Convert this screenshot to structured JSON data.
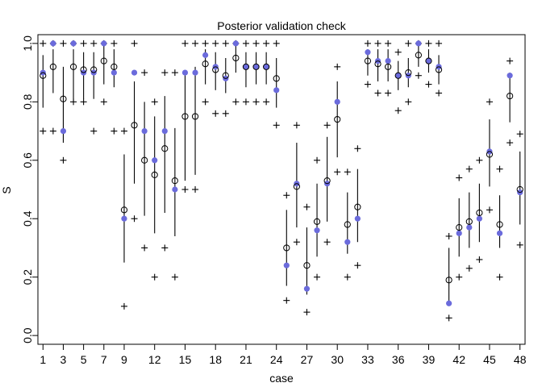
{
  "chart_data": {
    "type": "scatter",
    "title": "Posterior validation check",
    "xlabel": "case",
    "ylabel": "S",
    "xlim": [
      0.5,
      48.5
    ],
    "ylim": [
      -0.03,
      1.03
    ],
    "xticks": [
      1,
      3,
      5,
      7,
      9,
      12,
      15,
      18,
      21,
      24,
      27,
      30,
      33,
      36,
      39,
      42,
      45,
      48
    ],
    "xtick_labels": [
      "1",
      "3",
      "5",
      "7",
      "9",
      "12",
      "15",
      "18",
      "21",
      "24",
      "27",
      "30",
      "33",
      "36",
      "39",
      "42",
      "45",
      "48"
    ],
    "yticks": [
      0.0,
      0.2,
      0.4,
      0.6,
      0.8,
      1.0
    ],
    "ytick_labels": [
      "0.0",
      "0.2",
      "0.4",
      "0.6",
      "0.8",
      "1.0"
    ],
    "colors": {
      "observed": "#6b6bdc",
      "predicted": "#000000",
      "interval": "#000000"
    },
    "grid": false,
    "legend": "none",
    "x": [
      1,
      2,
      3,
      4,
      5,
      6,
      7,
      8,
      9,
      10,
      11,
      12,
      13,
      14,
      15,
      16,
      17,
      18,
      19,
      20,
      21,
      22,
      23,
      24,
      25,
      26,
      27,
      28,
      29,
      30,
      31,
      32,
      33,
      34,
      35,
      36,
      37,
      38,
      39,
      40,
      41,
      42,
      43,
      44,
      45,
      46,
      47,
      48
    ],
    "series": [
      {
        "values": [
          0.9,
          1.0,
          0.7,
          1.0,
          0.9,
          0.9,
          1.0,
          0.9,
          0.4,
          0.9,
          0.7,
          0.6,
          0.7,
          0.5,
          0.9,
          0.9,
          0.96,
          0.92,
          0.88,
          1.0,
          0.92,
          0.92,
          0.92,
          0.84,
          0.24,
          0.52,
          0.16,
          0.36,
          0.52,
          0.8,
          0.32,
          0.4,
          0.97,
          0.94,
          0.94,
          0.89,
          0.89,
          1.0,
          0.94,
          0.92,
          0.11,
          0.35,
          0.37,
          0.4,
          0.63,
          0.35,
          0.89,
          0.49
        ]
      },
      {
        "values": [
          0.89,
          0.92,
          0.81,
          0.92,
          0.91,
          0.91,
          0.94,
          0.92,
          0.43,
          0.72,
          0.6,
          0.55,
          0.64,
          0.53,
          0.75,
          0.75,
          0.93,
          0.91,
          0.89,
          0.95,
          0.92,
          0.92,
          0.92,
          0.88,
          0.3,
          0.51,
          0.24,
          0.39,
          0.53,
          0.74,
          0.38,
          0.44,
          0.94,
          0.93,
          0.92,
          0.89,
          0.9,
          0.96,
          0.94,
          0.91,
          0.19,
          0.37,
          0.39,
          0.42,
          0.62,
          0.38,
          0.82,
          0.5
        ]
      }
    ],
    "interval_low": [
      0.78,
      0.83,
      0.66,
      0.8,
      0.81,
      0.81,
      0.86,
      0.85,
      0.25,
      0.52,
      0.41,
      0.35,
      0.42,
      0.34,
      0.53,
      0.55,
      0.86,
      0.84,
      0.83,
      0.9,
      0.85,
      0.86,
      0.86,
      0.78,
      0.17,
      0.37,
      0.14,
      0.27,
      0.39,
      0.61,
      0.28,
      0.32,
      0.89,
      0.87,
      0.87,
      0.84,
      0.85,
      0.92,
      0.9,
      0.86,
      0.11,
      0.27,
      0.3,
      0.32,
      0.51,
      0.3,
      0.73,
      0.38
    ],
    "interval_high": [
      0.96,
      0.98,
      0.92,
      0.98,
      0.97,
      0.97,
      1.0,
      0.98,
      0.62,
      0.87,
      0.8,
      0.75,
      0.82,
      0.71,
      0.9,
      0.92,
      0.98,
      0.97,
      0.95,
      1.0,
      0.97,
      0.97,
      0.97,
      0.95,
      0.43,
      0.66,
      0.37,
      0.52,
      0.68,
      0.87,
      0.49,
      0.57,
      0.98,
      0.98,
      0.98,
      0.94,
      0.95,
      1.0,
      0.98,
      0.96,
      0.3,
      0.47,
      0.49,
      0.52,
      0.74,
      0.48,
      0.9,
      0.63
    ],
    "pred_low": [
      0.7,
      0.7,
      0.6,
      0.8,
      0.8,
      0.7,
      0.8,
      0.7,
      0.1,
      0.4,
      0.3,
      0.2,
      0.3,
      0.2,
      0.5,
      0.5,
      0.8,
      0.76,
      0.76,
      0.8,
      0.8,
      0.8,
      0.8,
      0.72,
      0.12,
      0.32,
      0.08,
      0.2,
      0.32,
      0.56,
      0.2,
      0.24,
      0.86,
      0.83,
      0.83,
      0.77,
      0.8,
      0.89,
      0.86,
      0.83,
      0.06,
      0.2,
      0.23,
      0.26,
      0.43,
      0.2,
      0.66,
      0.31
    ],
    "pred_high": [
      1.0,
      1.0,
      1.0,
      1.0,
      1.0,
      1.0,
      1.0,
      1.0,
      0.7,
      1.0,
      0.9,
      0.8,
      0.9,
      0.9,
      1.0,
      1.0,
      1.0,
      1.0,
      1.0,
      1.0,
      1.0,
      1.0,
      1.0,
      1.0,
      0.48,
      0.72,
      0.44,
      0.6,
      0.72,
      0.92,
      0.56,
      0.64,
      1.0,
      1.0,
      1.0,
      0.97,
      1.0,
      1.0,
      1.0,
      1.0,
      0.34,
      0.54,
      0.57,
      0.6,
      0.8,
      0.57,
      0.94,
      0.69
    ]
  }
}
